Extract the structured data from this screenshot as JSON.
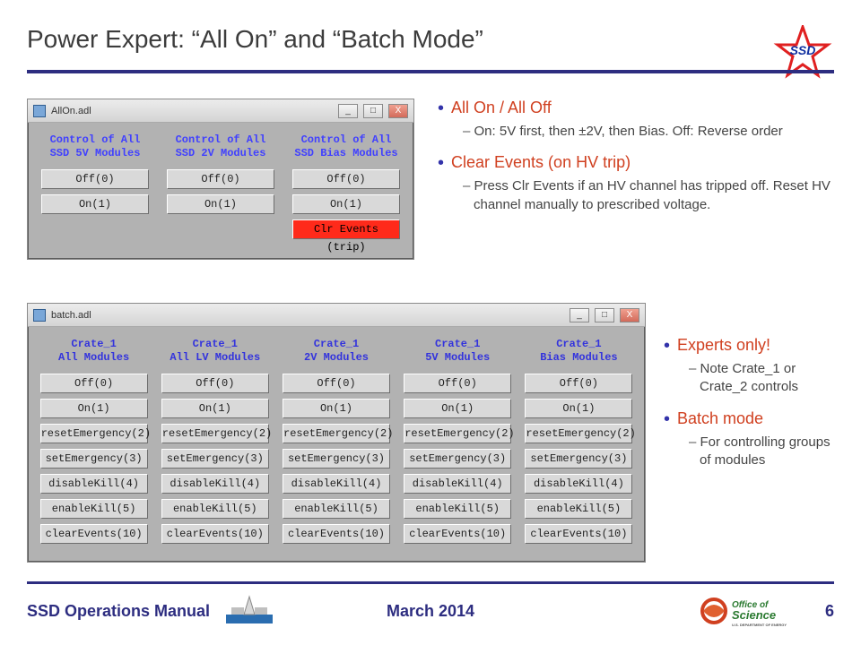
{
  "title": "Power Expert: “All On” and “Batch Mode”",
  "logo_text": "SSD",
  "star_color": "#e02020",
  "rule_color": "#2d2d80",
  "allon": {
    "window_title": "AllOn.adl",
    "columns": [
      {
        "hd1": "Control of All",
        "hd2": "SSD 5V Modules"
      },
      {
        "hd1": "Control of All",
        "hd2": "SSD 2V Modules"
      },
      {
        "hd1": "Control of All",
        "hd2": "SSD Bias Modules"
      }
    ],
    "buttons": [
      "Off(0)",
      "On(1)"
    ],
    "clr_events": "Clr Events (trip)"
  },
  "batch": {
    "window_title": "batch.adl",
    "columns": [
      {
        "hd1": "Crate_1",
        "hd2": "All Modules"
      },
      {
        "hd1": "Crate_1",
        "hd2": "All LV Modules"
      },
      {
        "hd1": "Crate_1",
        "hd2": "2V Modules"
      },
      {
        "hd1": "Crate_1",
        "hd2": "5V Modules"
      },
      {
        "hd1": "Crate_1",
        "hd2": "Bias Modules"
      }
    ],
    "buttons": [
      "Off(0)",
      "On(1)",
      "resetEmergency(2)",
      "setEmergency(3)",
      "disableKill(4)",
      "enableKill(5)",
      "clearEvents(10)"
    ]
  },
  "bullets_top": [
    {
      "t": "All On / All Off",
      "sub": [
        "On: 5V first, then ±2V, then Bias.  Off: Reverse order"
      ]
    },
    {
      "t": "Clear Events (on HV trip)",
      "sub": [
        "Press Clr Events if an HV channel has tripped off.  Reset HV channel manually to prescribed voltage."
      ]
    }
  ],
  "bullets_bottom": [
    {
      "t": "Experts only!",
      "sub": [
        "Note Crate_1 or Crate_2 controls"
      ]
    },
    {
      "t": "Batch mode",
      "sub": [
        "For controlling groups of modules"
      ]
    }
  ],
  "footer": {
    "left": "SSD Operations Manual",
    "center": "March 2014",
    "page": "6",
    "doe_text1": "Office of",
    "doe_text2": "Science"
  }
}
